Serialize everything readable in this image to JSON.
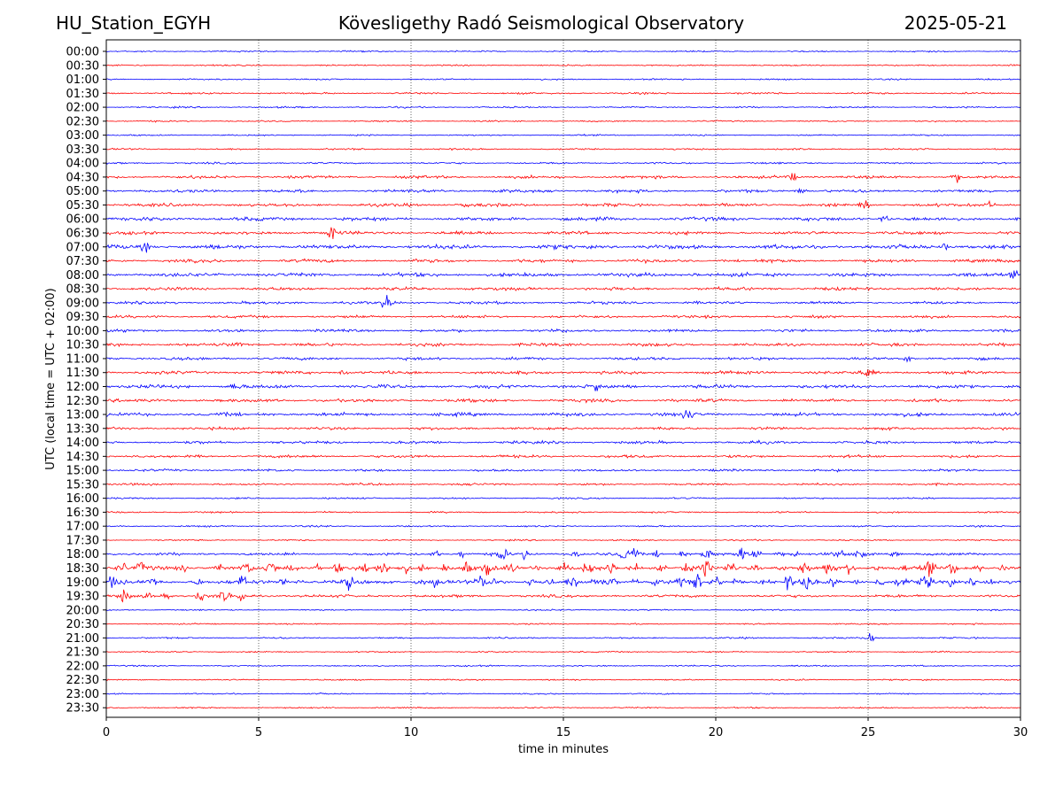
{
  "header": {
    "station": "HU_Station_EGYH",
    "observatory": "Kövesligethy Radó Seismological Observatory",
    "date": "2025-05-21"
  },
  "colors": {
    "even_rows": "#0000ff",
    "odd_rows": "#ff0000",
    "grid": "#000000"
  },
  "chart_data": {
    "type": "line",
    "xlabel": "time in minutes",
    "ylabel": "UTC (local time = UTC + 02:00)",
    "xlim": [
      0,
      30
    ],
    "x_ticks": [
      0,
      5,
      10,
      15,
      20,
      25,
      30
    ],
    "grid_x": true,
    "rows": [
      "00:00",
      "00:30",
      "01:00",
      "01:30",
      "02:00",
      "02:30",
      "03:00",
      "03:30",
      "04:00",
      "04:30",
      "05:00",
      "05:30",
      "06:00",
      "06:30",
      "07:00",
      "07:30",
      "08:00",
      "08:30",
      "09:00",
      "09:30",
      "10:00",
      "10:30",
      "11:00",
      "11:30",
      "12:00",
      "12:30",
      "13:00",
      "13:30",
      "14:00",
      "14:30",
      "15:00",
      "15:30",
      "16:00",
      "16:30",
      "17:00",
      "17:30",
      "18:00",
      "18:30",
      "19:00",
      "19:30",
      "20:00",
      "20:30",
      "21:00",
      "21:30",
      "22:00",
      "22:30",
      "23:00",
      "23:30"
    ],
    "noise_level": [
      0.6,
      0.6,
      0.6,
      0.8,
      0.7,
      0.6,
      0.6,
      0.7,
      0.8,
      1.2,
      1.3,
      1.4,
      1.6,
      1.4,
      1.8,
      1.4,
      1.6,
      1.4,
      1.2,
      1.2,
      1.2,
      1.4,
      1.2,
      1.4,
      1.6,
      1.4,
      1.5,
      1.2,
      1.2,
      1.2,
      1.0,
      0.9,
      0.7,
      0.7,
      0.7,
      0.6,
      1.2,
      1.6,
      1.6,
      1.2,
      0.6,
      0.6,
      0.7,
      0.6,
      0.6,
      0.6,
      0.6,
      0.6
    ],
    "bursts": [
      {
        "row": 9,
        "at": [
          22.5,
          27.9
        ]
      },
      {
        "row": 10,
        "at": [
          22.8
        ]
      },
      {
        "row": 11,
        "at": [
          11.8,
          24.9,
          29.0
        ]
      },
      {
        "row": 12,
        "at": [
          25.5
        ]
      },
      {
        "row": 13,
        "at": [
          7.4
        ]
      },
      {
        "row": 14,
        "at": [
          1.3,
          27.5
        ]
      },
      {
        "row": 16,
        "at": [
          19.4,
          29.8
        ]
      },
      {
        "row": 18,
        "at": [
          9.2
        ]
      },
      {
        "row": 21,
        "at": [
          4.3
        ]
      },
      {
        "row": 22,
        "at": [
          26.3
        ]
      },
      {
        "row": 23,
        "at": [
          7.8,
          25.0
        ]
      },
      {
        "row": 24,
        "at": [
          4.2,
          16.0
        ]
      },
      {
        "row": 26,
        "at": [
          19.1
        ]
      },
      {
        "row": 36,
        "at": [
          10.8,
          11.7,
          13.0,
          13.8,
          15.4,
          17.0,
          17.3,
          18.1,
          18.9,
          19.7,
          20.9,
          21.3,
          22.1,
          22.6,
          24.1,
          24.8,
          25.9
        ]
      },
      {
        "row": 37,
        "at": [
          0.5,
          1.2,
          2.5,
          3.7,
          4.6,
          5.4,
          6.1,
          6.9,
          7.6,
          8.5,
          9.1,
          9.8,
          10.4,
          11.1,
          11.8,
          12.5,
          13.3,
          14.1,
          15.0,
          15.8,
          16.6,
          17.4,
          18.2,
          19.0,
          19.7,
          20.5,
          21.3,
          22.1,
          22.9,
          23.7,
          24.4,
          25.3,
          26.1,
          27.0,
          27.8,
          28.6,
          29.4
        ]
      },
      {
        "row": 38,
        "at": [
          0.2,
          1.5,
          3.0,
          4.5,
          5.8,
          6.3,
          8.0,
          10.3,
          10.8,
          12.3,
          12.8,
          13.9,
          14.5,
          15.3,
          16.1,
          16.6,
          17.3,
          18.0,
          18.8,
          19.4,
          20.0,
          20.7,
          21.6,
          22.4,
          23.0,
          23.9,
          24.7,
          25.4,
          26.1,
          26.9,
          27.7,
          28.4,
          29.0
        ]
      },
      {
        "row": 39,
        "at": [
          0.6,
          1.4,
          2.0,
          3.1,
          3.9,
          4.4
        ]
      },
      {
        "row": 42,
        "at": [
          25.1
        ]
      }
    ]
  }
}
